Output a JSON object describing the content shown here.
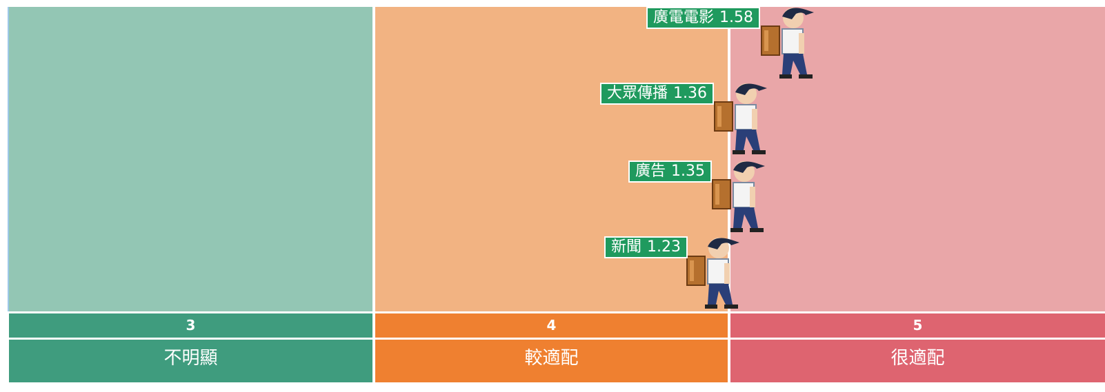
{
  "columns": [
    {
      "number": "3",
      "label": "不明顯"
    },
    {
      "number": "4",
      "label": "較適配"
    },
    {
      "number": "5",
      "label": "很適配"
    }
  ],
  "markers": [
    {
      "label": "廣電電影",
      "value": 1.58
    },
    {
      "label": "大眾傳播",
      "value": 1.36
    },
    {
      "label": "廣告",
      "value": 1.35
    },
    {
      "label": "新聞",
      "value": 1.23
    }
  ]
}
